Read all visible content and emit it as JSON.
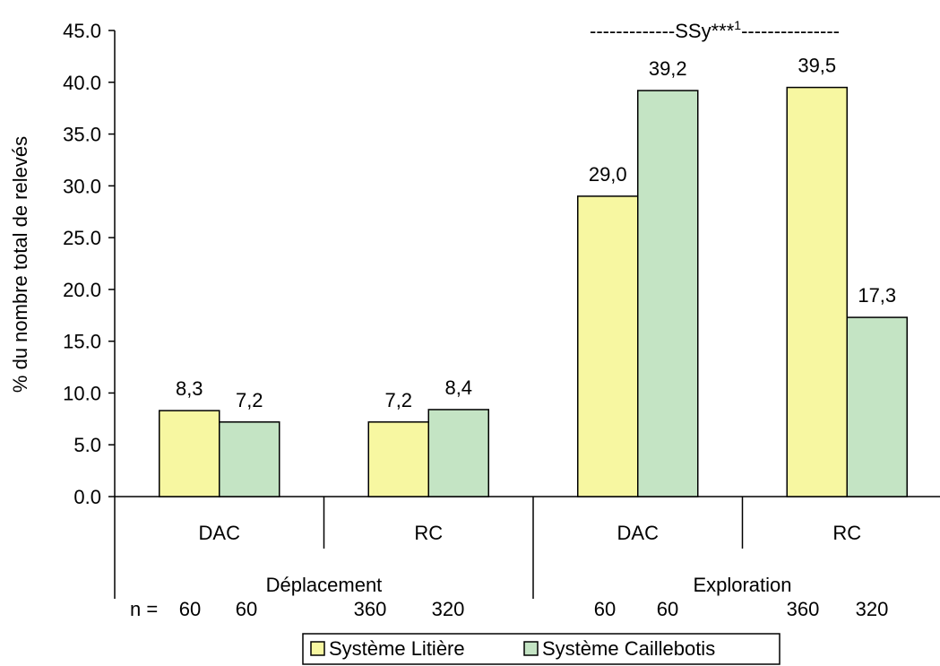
{
  "chart_data": {
    "type": "bar",
    "ylabel": "% du nombre total de relevés",
    "ylim": [
      0,
      45
    ],
    "yticks": [
      "0.0",
      "5.0",
      "10.0",
      "15.0",
      "20.0",
      "25.0",
      "30.0",
      "35.0",
      "40.0",
      "45.0"
    ],
    "categories": [
      "DAC",
      "RC",
      "DAC",
      "RC"
    ],
    "groups": [
      "Déplacement",
      "Exploration"
    ],
    "series": [
      {
        "name": "Système Litière",
        "color": "#f7f7a1",
        "values": [
          8.3,
          7.2,
          29.0,
          39.5
        ],
        "labels": [
          "8,3",
          "7,2",
          "29,0",
          "39,5"
        ]
      },
      {
        "name": "Système Caillebotis",
        "color": "#c4e4c4",
        "values": [
          7.2,
          8.4,
          39.2,
          17.3
        ],
        "labels": [
          "7,2",
          "8,4",
          "39,2",
          "17,3"
        ]
      }
    ],
    "n_row": {
      "prefix": "n = ",
      "values": [
        "60",
        "60",
        "360",
        "320",
        "60",
        "60",
        "360",
        "320"
      ]
    },
    "annotation": {
      "text": "-------------SSy***",
      "superscript": "1",
      "trailing": "---------------"
    },
    "legend_position": "bottom",
    "grid": false
  }
}
